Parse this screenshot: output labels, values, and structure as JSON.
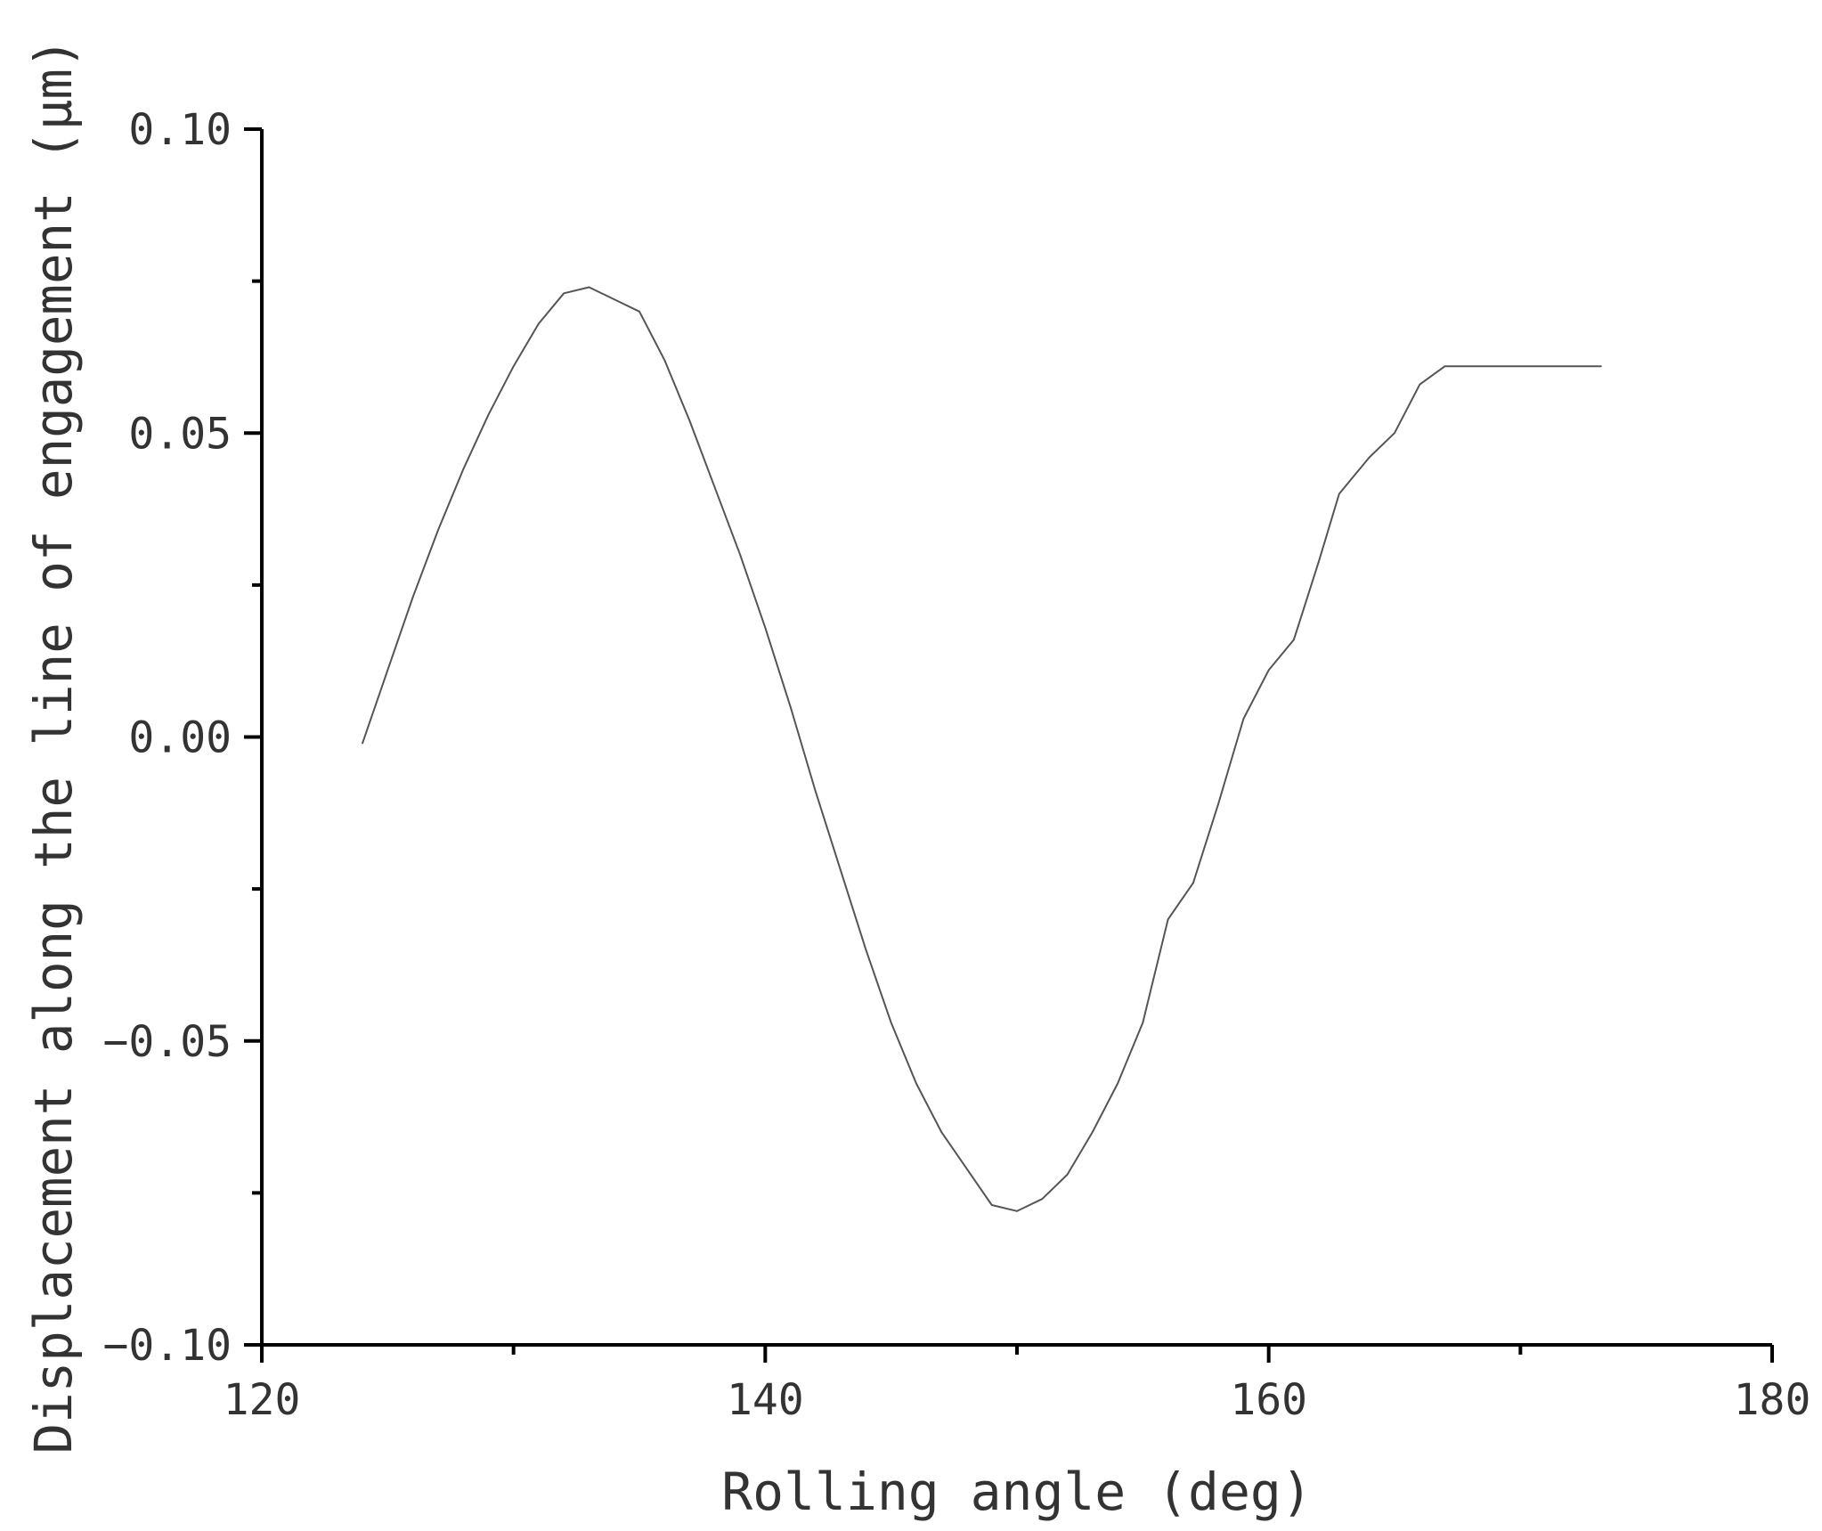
{
  "chart_data": {
    "type": "line",
    "title": "",
    "xlabel": "Rolling angle (deg)",
    "ylabel": "Displacement along the line of engagement (μm)",
    "xlim": [
      120,
      180
    ],
    "ylim": [
      -0.1,
      0.1
    ],
    "x_ticks": [
      "120",
      "140",
      "160",
      "180"
    ],
    "y_ticks": [
      "−0.10",
      "−0.05",
      "0.00",
      "0.05",
      "0.10"
    ],
    "grid": false,
    "legend": "none",
    "series_color": "#555555",
    "series": [
      {
        "x": [
          124.0,
          125.0,
          126.0,
          127.0,
          128.0,
          129.0,
          130.0,
          131.0,
          132.0,
          133.0,
          134.0,
          135.0,
          136.0,
          137.0,
          138.0,
          139.0,
          140.0,
          141.0,
          142.0,
          143.0,
          144.0,
          145.0,
          146.0,
          147.0,
          148.0,
          149.0,
          150.0,
          151.0,
          152.0,
          153.0,
          154.0,
          155.0,
          156.0,
          157.0,
          158.0,
          159.0,
          160.0,
          161.0,
          162.0,
          162.8,
          164.0,
          165.0,
          166.0,
          167.0,
          168.2,
          169.0,
          170.2,
          171.5,
          172.6,
          173.2
        ],
        "y": [
          -0.001,
          0.011,
          0.023,
          0.034,
          0.044,
          0.053,
          0.061,
          0.068,
          0.073,
          0.074,
          0.072,
          0.07,
          0.062,
          0.052,
          0.041,
          0.03,
          0.018,
          0.005,
          -0.009,
          -0.022,
          -0.035,
          -0.047,
          -0.057,
          -0.065,
          -0.071,
          -0.077,
          -0.078,
          -0.076,
          -0.072,
          -0.065,
          -0.057,
          -0.047,
          -0.03,
          -0.024,
          -0.011,
          0.003,
          0.011,
          0.016,
          0.029,
          0.04,
          0.046,
          0.05,
          0.058,
          0.061,
          0.061,
          0.061,
          0.061,
          0.061,
          0.061,
          0.061
        ]
      }
    ]
  }
}
